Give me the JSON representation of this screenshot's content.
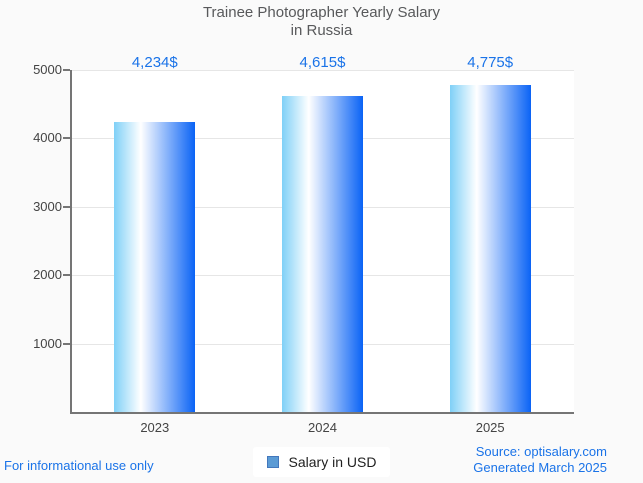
{
  "title": {
    "line1": "Trainee Photographer Yearly Salary",
    "line2": "in Russia"
  },
  "chart_data": {
    "type": "bar",
    "title": "Trainee Photographer Yearly Salary in Russia",
    "categories": [
      "2023",
      "2024",
      "2025"
    ],
    "series": [
      {
        "name": "Salary in USD",
        "values": [
          4234,
          4615,
          4775
        ]
      }
    ],
    "value_labels": [
      "4,234$",
      "4,615$",
      "4,775$"
    ],
    "xlabel": "",
    "ylabel": "",
    "ylim": [
      0,
      5000
    ],
    "y_ticks": [
      1000,
      2000,
      3000,
      4000,
      5000
    ],
    "grid": true,
    "legend_position": "bottom"
  },
  "legend": {
    "label": "Salary in USD"
  },
  "footer": {
    "left_note": "For informational use only",
    "source": "Source: optisalary.com",
    "generated": "Generated March 2025"
  },
  "colors": {
    "background": "#FAFAFA",
    "plot_background": "#FFFFFF",
    "gridline": "#E6E6E6",
    "axis": "#757575",
    "axis_label": "#444444",
    "title": "#58595B",
    "value_label": "#1A73E8",
    "footer_text": "#1A73E8",
    "legend_text": "#1F1F1F",
    "legend_marker_fill": "#5B9BD5",
    "legend_marker_border": "#4377BC",
    "bar_gradient_start": "#7FD0F7",
    "bar_gradient_mid": "#FFFFFF",
    "bar_gradient_end": "#0A63F5"
  }
}
